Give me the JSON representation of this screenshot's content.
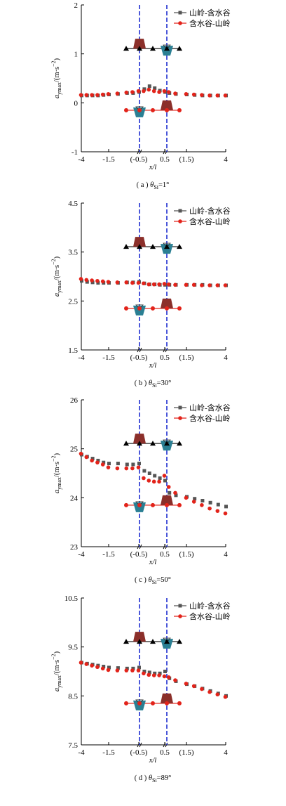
{
  "figure": {
    "colors": {
      "series1": "#555555",
      "series2": "#e2231a",
      "dashed": "#1f2fd0",
      "ridge": "#8b2f2a",
      "valley": "#2a7f93",
      "axis": "#000000"
    }
  },
  "chart_data": [
    {
      "type": "scatter",
      "caption": "( a )  θSi=1°",
      "caption_parts": {
        "prefix": "( a )",
        "symbol": "θ",
        "subscript": "Si",
        "suffix": "=1°"
      },
      "xlabel": "x/l",
      "ylabel": "a_ymax/(m·s^-2)",
      "ylabel_parts": {
        "base": "a",
        "sub": "ymax",
        "unit": "/(m·s",
        "sup": "−2",
        "close": ")"
      },
      "xlim": [
        -4,
        4
      ],
      "ylim": [
        -1,
        2
      ],
      "x_ticks": [
        "-4",
        "-1.5",
        "(-0.5)",
        "0.5",
        "(1.5)",
        "4"
      ],
      "y_ticks": [
        "-1",
        "0",
        "1",
        "2"
      ],
      "legend": [
        "山岭-含水谷",
        "含水谷-山岭"
      ],
      "series": [
        {
          "name": "山岭-含水谷",
          "marker": "square",
          "x": [
            -4,
            -3.5,
            -3,
            -2.5,
            -2,
            -1.5,
            -1.2,
            -0.9,
            -0.7,
            -0.5,
            -0.3,
            -0.1,
            0.1,
            0.3,
            0.5,
            0.7,
            1,
            1.5,
            2,
            2.5,
            3,
            3.5,
            4
          ],
          "y": [
            0.15,
            0.15,
            0.15,
            0.15,
            0.16,
            0.17,
            0.18,
            0.2,
            0.2,
            0.22,
            0.28,
            0.34,
            0.3,
            0.25,
            0.22,
            0.2,
            0.18,
            0.17,
            0.16,
            0.15,
            0.15,
            0.15,
            0.15
          ]
        },
        {
          "name": "含水谷-山岭",
          "marker": "circle",
          "x": [
            -4,
            -3.5,
            -3,
            -2.5,
            -2,
            -1.5,
            -1.2,
            -0.9,
            -0.7,
            -0.5,
            -0.3,
            -0.1,
            0.1,
            0.3,
            0.5,
            0.7,
            1,
            1.5,
            2,
            2.5,
            3,
            3.5,
            4
          ],
          "y": [
            0.16,
            0.16,
            0.16,
            0.16,
            0.17,
            0.18,
            0.19,
            0.21,
            0.22,
            0.24,
            0.24,
            0.27,
            0.24,
            0.22,
            0.24,
            0.22,
            0.19,
            0.18,
            0.17,
            0.16,
            0.15,
            0.15,
            0.15
          ]
        }
      ]
    },
    {
      "type": "scatter",
      "caption": "( b )  θSi=30°",
      "caption_parts": {
        "prefix": "( b )",
        "symbol": "θ",
        "subscript": "Si",
        "suffix": "=30°"
      },
      "xlabel": "x/l",
      "ylabel": "a_ymax/(m·s^-2)",
      "ylabel_parts": {
        "base": "a",
        "sub": "ymax",
        "unit": "/(m·s",
        "sup": "−2",
        "close": ")"
      },
      "xlim": [
        -4,
        4
      ],
      "ylim": [
        1.5,
        4.5
      ],
      "x_ticks": [
        "-4",
        "-1.5",
        "(-0.5)",
        "0.5",
        "(1.5)",
        "4"
      ],
      "y_ticks": [
        "1.5",
        "2.5",
        "3.5",
        "4.5"
      ],
      "legend": [
        "山岭-含水谷",
        "含水谷-山岭"
      ],
      "series": [
        {
          "name": "山岭-含水谷",
          "marker": "square",
          "x": [
            -4,
            -3.5,
            -3,
            -2.5,
            -2,
            -1.5,
            -1.2,
            -0.9,
            -0.7,
            -0.5,
            -0.3,
            -0.1,
            0.1,
            0.3,
            0.5,
            0.7,
            1,
            1.5,
            2,
            2.5,
            3,
            3.5,
            4
          ],
          "y": [
            2.91,
            2.89,
            2.88,
            2.87,
            2.87,
            2.87,
            2.87,
            2.88,
            2.88,
            2.89,
            2.86,
            2.84,
            2.84,
            2.83,
            2.83,
            2.83,
            2.83,
            2.83,
            2.83,
            2.83,
            2.82,
            2.82,
            2.82
          ]
        },
        {
          "name": "含水谷-山岭",
          "marker": "circle",
          "x": [
            -4,
            -3.5,
            -3,
            -2.5,
            -2,
            -1.5,
            -1.2,
            -0.9,
            -0.7,
            -0.5,
            -0.3,
            -0.1,
            0.1,
            0.3,
            0.5,
            0.7,
            1,
            1.5,
            2,
            2.5,
            3,
            3.5,
            4
          ],
          "y": [
            2.95,
            2.93,
            2.92,
            2.91,
            2.9,
            2.89,
            2.88,
            2.88,
            2.87,
            2.87,
            2.86,
            2.84,
            2.84,
            2.84,
            2.85,
            2.84,
            2.83,
            2.83,
            2.83,
            2.82,
            2.82,
            2.82,
            2.82
          ]
        }
      ]
    },
    {
      "type": "scatter",
      "caption": "( c )  θSi=50°",
      "caption_parts": {
        "prefix": "( c )",
        "symbol": "θ",
        "subscript": "Si",
        "suffix": "=50°"
      },
      "xlabel": "x/l",
      "ylabel": "a_ymax/(m·s^-2)",
      "ylabel_parts": {
        "base": "a",
        "sub": "ymax",
        "unit": "/(m·s",
        "sup": "−2",
        "close": ")"
      },
      "xlim": [
        -4,
        4
      ],
      "ylim": [
        23,
        26
      ],
      "x_ticks": [
        "-4",
        "-1.5",
        "(-0.5)",
        "0.5",
        "(1.5)",
        "4"
      ],
      "y_ticks": [
        "23",
        "24",
        "25",
        "26"
      ],
      "legend": [
        "山岭-含水谷",
        "含水谷-山岭"
      ],
      "series": [
        {
          "name": "山岭-含水谷",
          "marker": "square",
          "x": [
            -4,
            -3.5,
            -3,
            -2.5,
            -2,
            -1.5,
            -1.2,
            -0.9,
            -0.7,
            -0.5,
            -0.3,
            -0.1,
            0.1,
            0.3,
            0.5,
            0.7,
            1,
            1.5,
            2,
            2.5,
            3,
            3.5,
            4
          ],
          "y": [
            24.88,
            24.84,
            24.8,
            24.76,
            24.72,
            24.7,
            24.7,
            24.68,
            24.68,
            24.7,
            24.55,
            24.5,
            24.45,
            24.4,
            24.35,
            24.1,
            24.05,
            24.02,
            23.98,
            23.94,
            23.9,
            23.86,
            23.82
          ]
        },
        {
          "name": "含水谷-山岭",
          "marker": "circle",
          "x": [
            -4,
            -3.5,
            -3,
            -2.5,
            -2,
            -1.5,
            -1.2,
            -0.9,
            -0.7,
            -0.5,
            -0.3,
            -0.1,
            0.1,
            0.3,
            0.5,
            0.7,
            1,
            1.5,
            2,
            2.5,
            3,
            3.5,
            4
          ],
          "y": [
            24.9,
            24.83,
            24.76,
            24.72,
            24.68,
            24.62,
            24.6,
            24.6,
            24.6,
            24.62,
            24.4,
            24.35,
            24.33,
            24.33,
            24.45,
            24.22,
            24.1,
            24.0,
            23.92,
            23.85,
            23.78,
            23.73,
            23.68
          ]
        }
      ]
    },
    {
      "type": "scatter",
      "caption": "( d )  θSi=89°",
      "caption_parts": {
        "prefix": "( d )",
        "symbol": "θ",
        "subscript": "Si",
        "suffix": "=89°"
      },
      "xlabel": "x/l",
      "ylabel": "a_ymax/(m·s^-2)",
      "ylabel_parts": {
        "base": "a",
        "sub": "ymax",
        "unit": "/(m·s",
        "sup": "−2",
        "close": ")"
      },
      "xlim": [
        -4,
        4
      ],
      "ylim": [
        7.5,
        10.5
      ],
      "x_ticks": [
        "-4",
        "-1.5",
        "(-0.5)",
        "0.5",
        "(1.5)",
        "4"
      ],
      "y_ticks": [
        "7.5",
        "8.5",
        "9.5",
        "10.5"
      ],
      "legend": [
        "山岭-含水谷",
        "含水谷-山岭"
      ],
      "series": [
        {
          "name": "山岭-含水谷",
          "marker": "square",
          "x": [
            -4,
            -3.5,
            -3,
            -2.5,
            -2,
            -1.5,
            -1.2,
            -0.9,
            -0.7,
            -0.5,
            -0.3,
            -0.1,
            0.1,
            0.3,
            0.5,
            0.7,
            1,
            1.5,
            2,
            2.5,
            3,
            3.5,
            4
          ],
          "y": [
            9.18,
            9.16,
            9.14,
            9.12,
            9.1,
            9.08,
            9.07,
            9.06,
            9.06,
            9.08,
            9.0,
            8.98,
            8.96,
            8.96,
            9.0,
            8.86,
            8.8,
            8.74,
            8.7,
            8.65,
            8.6,
            8.55,
            8.5
          ]
        },
        {
          "name": "含水谷-山岭",
          "marker": "circle",
          "x": [
            -4,
            -3.5,
            -3,
            -2.5,
            -2,
            -1.5,
            -1.2,
            -0.9,
            -0.7,
            -0.5,
            -0.3,
            -0.1,
            0.1,
            0.3,
            0.5,
            0.7,
            1,
            1.5,
            2,
            2.5,
            3,
            3.5,
            4
          ],
          "y": [
            9.18,
            9.15,
            9.12,
            9.09,
            9.06,
            9.03,
            9.02,
            9.02,
            9.02,
            9.02,
            8.96,
            8.93,
            8.92,
            8.92,
            8.9,
            8.88,
            8.82,
            8.75,
            8.7,
            8.64,
            8.58,
            8.53,
            8.48
          ]
        }
      ]
    }
  ]
}
